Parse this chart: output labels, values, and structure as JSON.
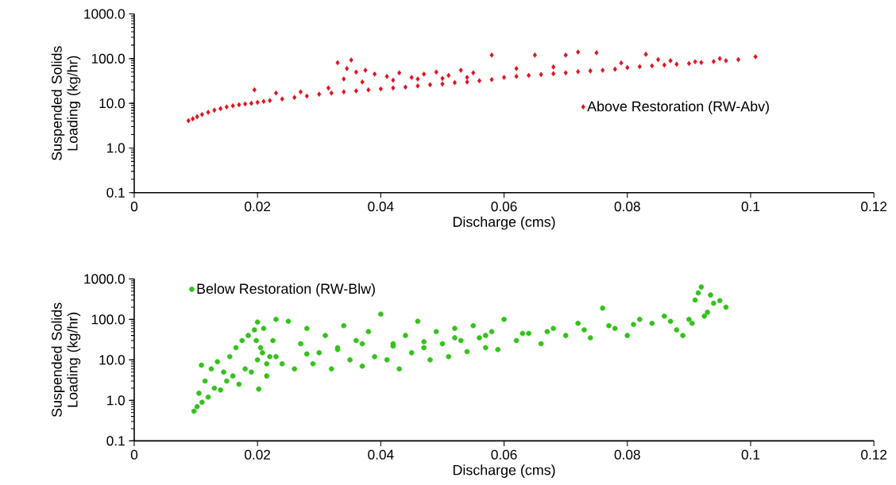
{
  "chart_data": [
    {
      "type": "scatter",
      "xlabel": "Discharge (cms)",
      "ylabel": "Suspended Solids Loading (kg/hr)",
      "log": "y",
      "marker": "diamond",
      "legend": "right",
      "xlim": [
        0,
        0.12
      ],
      "xticks": [
        0,
        0.02,
        0.04,
        0.06,
        0.08,
        0.1,
        0.12
      ],
      "ylim": [
        0.1,
        1000
      ],
      "yticks": [
        {
          "value": 0.1,
          "label": "0.1"
        },
        {
          "value": 1,
          "label": "1.0"
        },
        {
          "value": 10,
          "label": "10.0"
        },
        {
          "value": 100,
          "label": "100.0"
        },
        {
          "value": 1000,
          "label": "1000.0"
        }
      ],
      "series": [
        {
          "name": "Above Restoration (RW-Abv)",
          "color": "#e3101d",
          "x": [
            0.0088,
            0.0095,
            0.0102,
            0.011,
            0.012,
            0.013,
            0.014,
            0.015,
            0.016,
            0.017,
            0.018,
            0.019,
            0.02,
            0.021,
            0.022,
            0.024,
            0.026,
            0.028,
            0.03,
            0.032,
            0.034,
            0.036,
            0.038,
            0.04,
            0.042,
            0.044,
            0.046,
            0.048,
            0.05,
            0.052,
            0.054,
            0.056,
            0.058,
            0.06,
            0.062,
            0.064,
            0.066,
            0.068,
            0.07,
            0.072,
            0.074,
            0.076,
            0.078,
            0.08,
            0.082,
            0.084,
            0.086,
            0.088,
            0.09,
            0.092,
            0.094,
            0.096,
            0.098,
            0.1008,
            0.0195,
            0.023,
            0.027,
            0.0315,
            0.033,
            0.0345,
            0.0352,
            0.036,
            0.0375,
            0.039,
            0.041,
            0.043,
            0.045,
            0.047,
            0.049,
            0.051,
            0.053,
            0.055,
            0.058,
            0.065,
            0.07,
            0.072,
            0.075,
            0.083,
            0.085,
            0.062,
            0.068,
            0.079,
            0.087,
            0.091,
            0.095,
            0.034,
            0.037,
            0.042,
            0.046,
            0.05,
            0.054
          ],
          "values": [
            4.1,
            4.5,
            5.0,
            5.6,
            6.3,
            7.0,
            7.6,
            8.3,
            8.8,
            9.3,
            9.7,
            10,
            10.5,
            11,
            11.5,
            12.5,
            13.5,
            14.5,
            16,
            17,
            18,
            19,
            20,
            21,
            22,
            23,
            24.5,
            26,
            27,
            29,
            30,
            32,
            34,
            38,
            40,
            42,
            44,
            46,
            48,
            51,
            53,
            55,
            58,
            63,
            66,
            69,
            72,
            75,
            78,
            82,
            86,
            90,
            95,
            110,
            20,
            17,
            18,
            22,
            81,
            60,
            93,
            50,
            55,
            45,
            40,
            48,
            38,
            45,
            50,
            42,
            55,
            48,
            120,
            120,
            120,
            140,
            135,
            125,
            95,
            60,
            65,
            80,
            90,
            85,
            100,
            35,
            30,
            33,
            35,
            36,
            38
          ]
        }
      ]
    },
    {
      "type": "scatter",
      "xlabel": "Discharge (cms)",
      "ylabel": "Suspended Solids Loading (kg/hr)",
      "log": "y",
      "marker": "circle",
      "legend": "top left",
      "xlim": [
        0,
        0.12
      ],
      "xticks": [
        0,
        0.02,
        0.04,
        0.06,
        0.08,
        0.1,
        0.12
      ],
      "ylim": [
        0.1,
        1000
      ],
      "yticks": [
        {
          "value": 0.1,
          "label": "0.1"
        },
        {
          "value": 1,
          "label": "1.0"
        },
        {
          "value": 10,
          "label": "10.0"
        },
        {
          "value": 100,
          "label": "100.0"
        },
        {
          "value": 1000,
          "label": "1000.0"
        }
      ],
      "series": [
        {
          "name": "Below Restoration (RW-Blw)",
          "color": "#33c21a",
          "x": [
            0.0097,
            0.0102,
            0.0105,
            0.0109,
            0.011,
            0.0115,
            0.012,
            0.0125,
            0.013,
            0.0135,
            0.014,
            0.0145,
            0.015,
            0.0155,
            0.016,
            0.0165,
            0.017,
            0.0175,
            0.018,
            0.0185,
            0.019,
            0.0195,
            0.02,
            0.0202,
            0.0205,
            0.021,
            0.0215,
            0.022,
            0.0225,
            0.023,
            0.024,
            0.025,
            0.026,
            0.027,
            0.028,
            0.029,
            0.03,
            0.031,
            0.032,
            0.033,
            0.034,
            0.035,
            0.036,
            0.037,
            0.038,
            0.039,
            0.04,
            0.041,
            0.042,
            0.043,
            0.044,
            0.045,
            0.046,
            0.047,
            0.048,
            0.049,
            0.05,
            0.051,
            0.052,
            0.053,
            0.054,
            0.055,
            0.056,
            0.057,
            0.058,
            0.059,
            0.06,
            0.062,
            0.064,
            0.066,
            0.068,
            0.07,
            0.072,
            0.074,
            0.076,
            0.078,
            0.08,
            0.082,
            0.084,
            0.086,
            0.088,
            0.089,
            0.09,
            0.091,
            0.092,
            0.093,
            0.094,
            0.095,
            0.096,
            0.0905,
            0.0915,
            0.0925,
            0.0935,
            0.02,
            0.0198,
            0.0208,
            0.0215,
            0.023,
            0.028,
            0.033,
            0.037,
            0.042,
            0.047,
            0.052,
            0.057,
            0.063,
            0.067,
            0.073,
            0.077,
            0.081,
            0.087
          ],
          "values": [
            0.54,
            0.7,
            1.5,
            7.4,
            0.9,
            3.0,
            1.2,
            6.0,
            2.0,
            9.0,
            1.8,
            5.0,
            3.0,
            12,
            4.0,
            20,
            2.5,
            30,
            6.0,
            40,
            5.0,
            55,
            86,
            1.9,
            20,
            60,
            4.0,
            12,
            30,
            100,
            8.0,
            90,
            6.0,
            25,
            60,
            8.0,
            15,
            40,
            6.0,
            20,
            70,
            10,
            30,
            7.0,
            50,
            12,
            135,
            10,
            25,
            6.0,
            40,
            15,
            90,
            20,
            10,
            50,
            25,
            12,
            60,
            30,
            16,
            70,
            35,
            20,
            50,
            18,
            100,
            30,
            45,
            25,
            60,
            40,
            80,
            35,
            190,
            60,
            40,
            100,
            80,
            120,
            55,
            40,
            100,
            300,
            630,
            150,
            250,
            290,
            200,
            80,
            450,
            120,
            400,
            10,
            30,
            15,
            8.0,
            12,
            14,
            18,
            25,
            22,
            28,
            35,
            40,
            45,
            50,
            55,
            70,
            75,
            90
          ]
        }
      ]
    }
  ]
}
